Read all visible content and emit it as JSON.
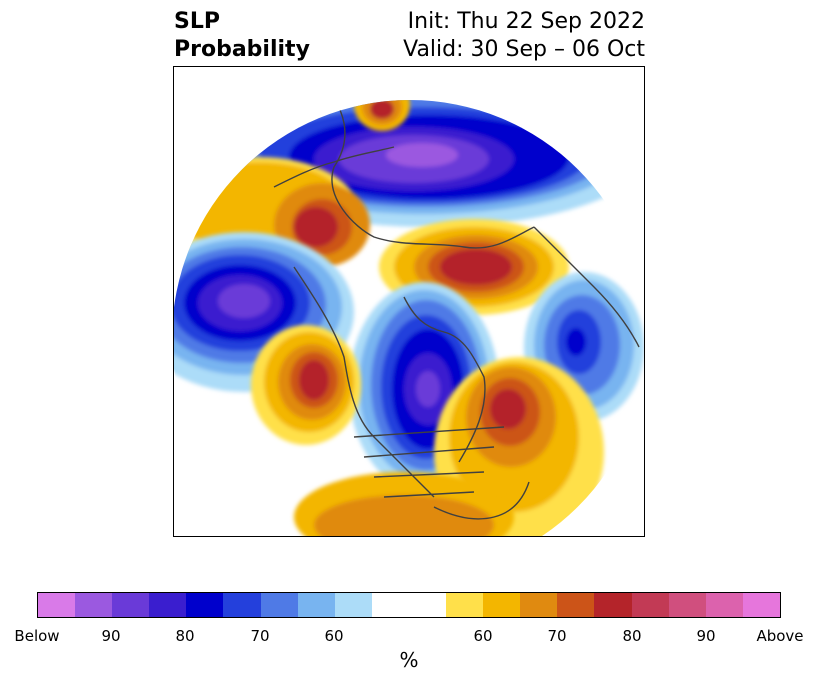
{
  "title": {
    "left_line1": "SLP",
    "left_line2": "Probability",
    "right_line1": "Init: Thu 22 Sep 2022",
    "right_line2": "Valid: 30 Sep – 06 Oct"
  },
  "colorbar": {
    "label": "%",
    "ticks": [
      "Below",
      "90",
      "80",
      "70",
      "60",
      "60",
      "70",
      "80",
      "90",
      "Above"
    ],
    "colors": [
      "#d97ae8",
      "#9b59e0",
      "#6a3ad8",
      "#3a1ecf",
      "#0000cc",
      "#2440dc",
      "#4f7ae6",
      "#78b4f0",
      "#acdcf8",
      "#ffffff",
      "#ffe04a",
      "#f3b600",
      "#e08a10",
      "#cc5418",
      "#b4242a",
      "#c23a55",
      "#d04f7e",
      "#dc62ad",
      "#e676dc"
    ]
  },
  "map": {
    "projection": "north-polar-stereographic",
    "field": "SLP probability"
  }
}
